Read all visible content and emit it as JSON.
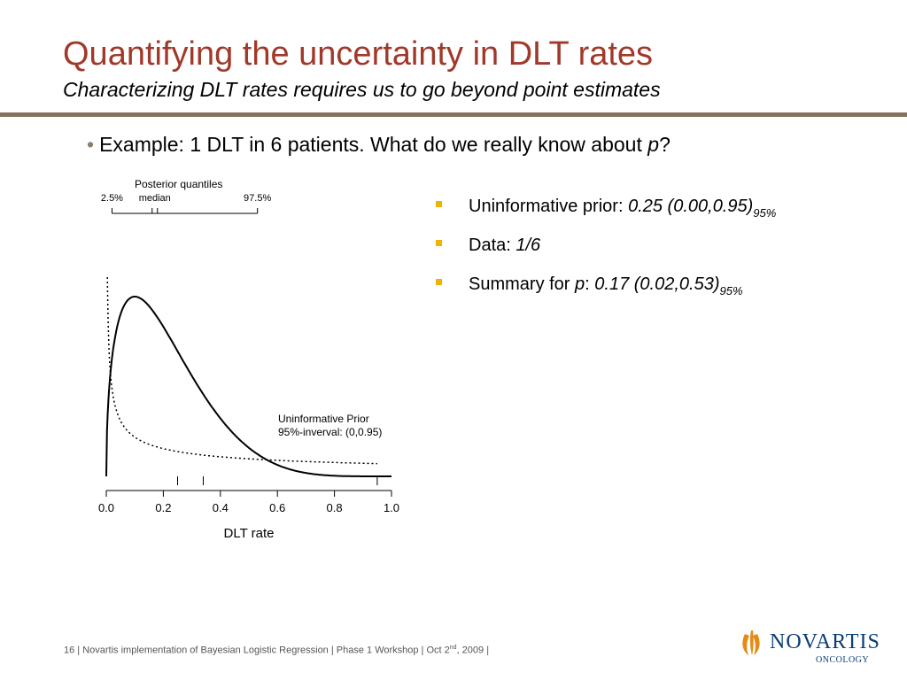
{
  "slide": {
    "title": "Quantifying the uncertainty in DLT rates",
    "subtitle": "Characterizing DLT rates requires us to go beyond point estimates",
    "bullet": {
      "text_before": "Example: 1 DLT in 6 patients. What do we really know about ",
      "var": "p",
      "text_after": "?"
    },
    "sub_bullets": [
      {
        "label": "Uninformative prior: ",
        "value": "0.25 (0.00,0.95)",
        "subscript": "95%"
      },
      {
        "label": "Data: ",
        "value": "1/6",
        "subscript": ""
      },
      {
        "label_before": "Summary for ",
        "var": "p",
        "label_after": ": ",
        "value": "0.17 (0.02,0.53)",
        "subscript": "95%"
      }
    ],
    "footer": {
      "page": "16",
      "text_a": " | Novartis implementation of Bayesian Logistic Regression | Phase 1 Workshop | Oct 2",
      "sup": "nd",
      "text_b": ", 2009 |"
    },
    "logo": {
      "wordmark": "NOVARTIS",
      "sub": "ONCOLOGY",
      "color": "#0a3d7a"
    },
    "colors": {
      "title": "#a0392a",
      "rule": "#85725c",
      "bullet_square": "#f0b400"
    }
  },
  "chart_data": {
    "type": "line",
    "xlabel": "DLT rate",
    "xlim": [
      0,
      1
    ],
    "xticks": [
      0.0,
      0.2,
      0.4,
      0.6,
      0.8,
      1.0
    ],
    "xtick_labels": [
      "0.0",
      "0.2",
      "0.4",
      "0.6",
      "0.8",
      "1.0"
    ],
    "minor_ticks": [
      0.25,
      0.34,
      0.95
    ],
    "series": [
      {
        "line_style": "solid",
        "distribution": "posterior",
        "quantiles": {
          "2.5%": 0.02,
          "median": 0.17,
          "97.5%": 0.53
        }
      },
      {
        "line_style": "dotted",
        "distribution": "prior",
        "quantiles": {
          "2.5%": 0.0,
          "97.5%": 0.95
        }
      }
    ],
    "quantile_bracket": {
      "title": "Posterior quantiles",
      "labels": [
        "2.5%",
        "median",
        "97.5%"
      ],
      "x": [
        0.02,
        0.17,
        0.53
      ]
    },
    "annotation": {
      "line1": "Uninformative Prior",
      "line2": "95%-inverval: (0,0.95)"
    }
  }
}
